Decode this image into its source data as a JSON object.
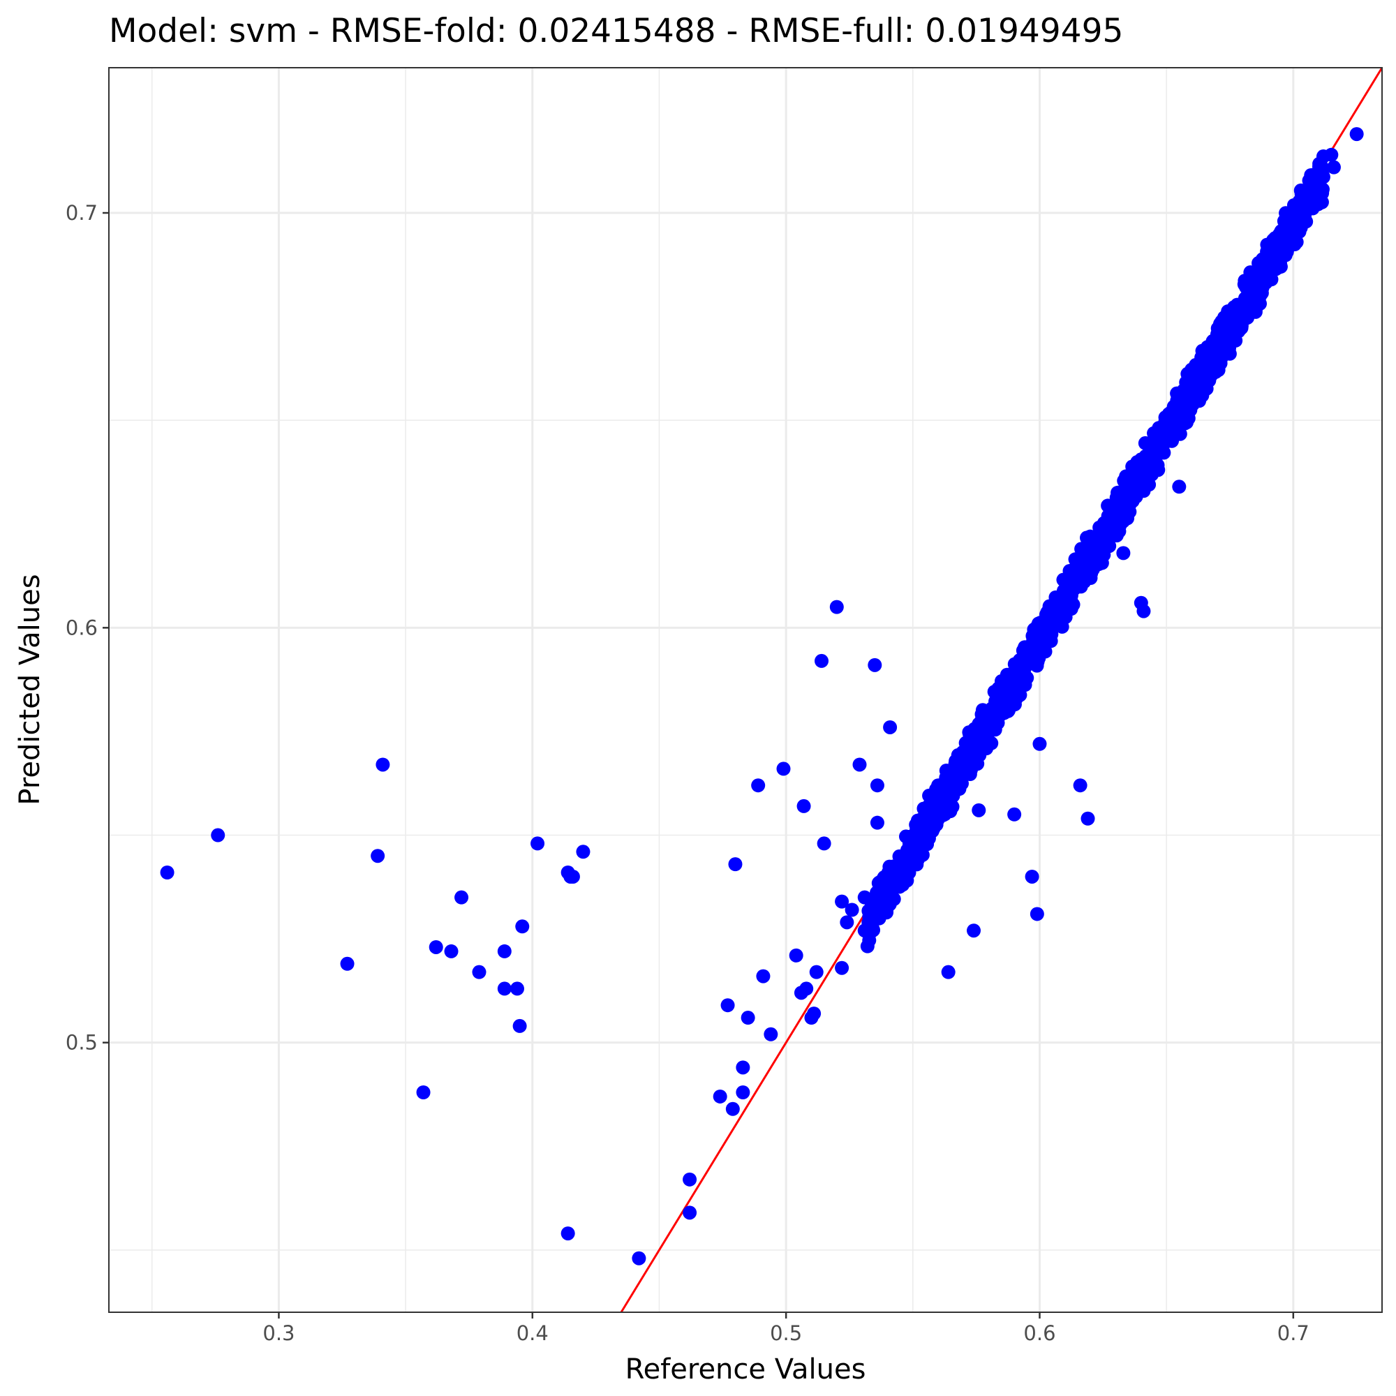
{
  "chart_data": {
    "type": "scatter",
    "title": "Model: svm - RMSE-fold: 0.02415488 - RMSE-full: 0.01949495",
    "xlabel": "Reference Values",
    "ylabel": "Predicted Values",
    "xlim": [
      0.233,
      0.735
    ],
    "ylim": [
      0.435,
      0.735
    ],
    "x_ticks": [
      0.3,
      0.4,
      0.5,
      0.6,
      0.7
    ],
    "x_tick_labels": [
      "0.3",
      "0.4",
      "0.5",
      "0.6",
      "0.7"
    ],
    "y_ticks": [
      0.5,
      0.6,
      0.7
    ],
    "y_tick_labels": [
      "0.5",
      "0.6",
      "0.7"
    ],
    "grid": true,
    "colors": {
      "points": "#0000ff",
      "reference_line": "#ff0000"
    },
    "reference_line": {
      "slope": 1,
      "intercept": 0
    },
    "outliers": [
      [
        0.256,
        0.541
      ],
      [
        0.276,
        0.55
      ],
      [
        0.327,
        0.519
      ],
      [
        0.339,
        0.545
      ],
      [
        0.341,
        0.567
      ],
      [
        0.357,
        0.488
      ],
      [
        0.362,
        0.523
      ],
      [
        0.368,
        0.522
      ],
      [
        0.372,
        0.535
      ],
      [
        0.379,
        0.517
      ],
      [
        0.389,
        0.513
      ],
      [
        0.389,
        0.522
      ],
      [
        0.394,
        0.513
      ],
      [
        0.395,
        0.504
      ],
      [
        0.396,
        0.528
      ],
      [
        0.402,
        0.548
      ],
      [
        0.414,
        0.541
      ],
      [
        0.415,
        0.54
      ],
      [
        0.416,
        0.54
      ],
      [
        0.414,
        0.454
      ],
      [
        0.42,
        0.546
      ],
      [
        0.442,
        0.448
      ],
      [
        0.462,
        0.459
      ],
      [
        0.462,
        0.467
      ],
      [
        0.474,
        0.487
      ],
      [
        0.477,
        0.509
      ],
      [
        0.479,
        0.484
      ],
      [
        0.48,
        0.543
      ],
      [
        0.483,
        0.494
      ],
      [
        0.483,
        0.488
      ],
      [
        0.485,
        0.506
      ],
      [
        0.489,
        0.562
      ],
      [
        0.491,
        0.516
      ],
      [
        0.494,
        0.502
      ],
      [
        0.499,
        0.566
      ],
      [
        0.504,
        0.521
      ],
      [
        0.506,
        0.512
      ],
      [
        0.507,
        0.557
      ],
      [
        0.508,
        0.513
      ],
      [
        0.51,
        0.506
      ],
      [
        0.511,
        0.507
      ],
      [
        0.512,
        0.517
      ],
      [
        0.514,
        0.592
      ],
      [
        0.515,
        0.548
      ],
      [
        0.52,
        0.605
      ],
      [
        0.522,
        0.534
      ],
      [
        0.522,
        0.518
      ],
      [
        0.524,
        0.529
      ],
      [
        0.526,
        0.532
      ],
      [
        0.529,
        0.567
      ],
      [
        0.531,
        0.535
      ],
      [
        0.531,
        0.527
      ],
      [
        0.535,
        0.591
      ],
      [
        0.536,
        0.562
      ],
      [
        0.536,
        0.553
      ],
      [
        0.541,
        0.576
      ],
      [
        0.564,
        0.517
      ],
      [
        0.574,
        0.527
      ],
      [
        0.576,
        0.556
      ],
      [
        0.59,
        0.555
      ],
      [
        0.597,
        0.54
      ],
      [
        0.599,
        0.531
      ],
      [
        0.6,
        0.572
      ],
      [
        0.616,
        0.562
      ],
      [
        0.619,
        0.554
      ],
      [
        0.64,
        0.606
      ],
      [
        0.641,
        0.604
      ],
      [
        0.633,
        0.618
      ],
      [
        0.655,
        0.634
      ],
      [
        0.66,
        0.657
      ],
      [
        0.69,
        0.686
      ],
      [
        0.694,
        0.69
      ],
      [
        0.715,
        0.714
      ],
      [
        0.716,
        0.711
      ],
      [
        0.725,
        0.719
      ]
    ],
    "band": {
      "note": "dense cluster of several thousand points along the diagonal",
      "x_range": [
        0.532,
        0.712
      ],
      "center_offset": -0.003,
      "half_width": 0.004,
      "count": 1400
    }
  }
}
